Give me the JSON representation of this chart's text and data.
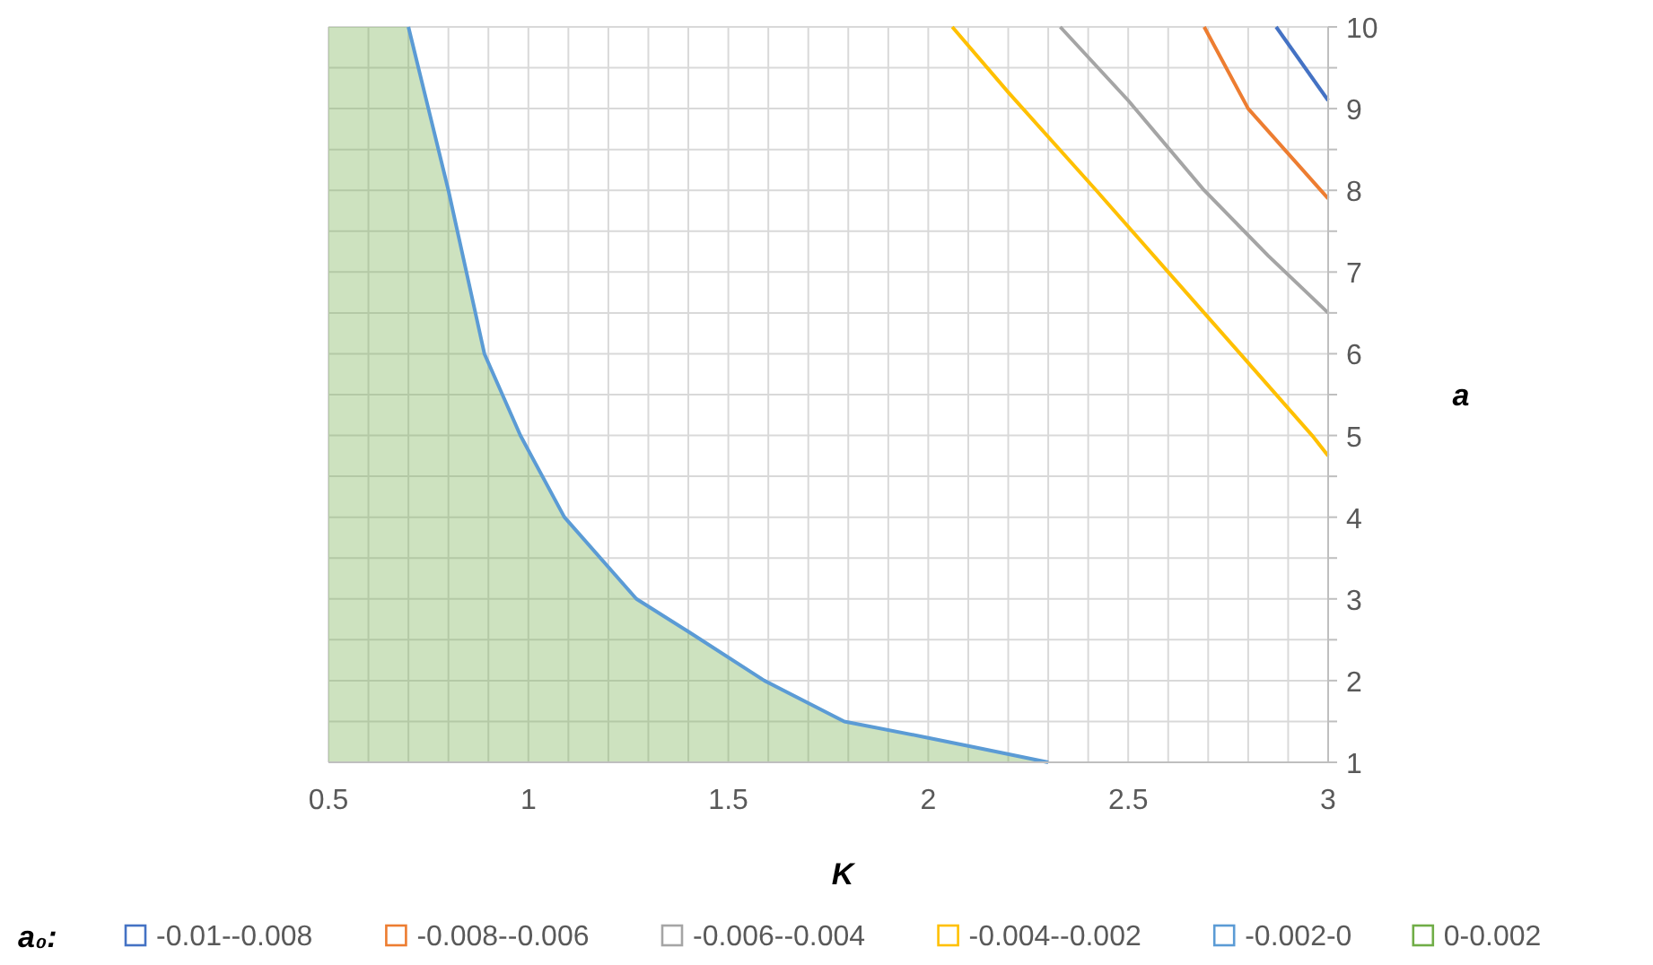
{
  "chart_data": {
    "type": "line",
    "xlabel": "K",
    "ylabel": "a",
    "legend_title": "a₀:",
    "legend": "bottom",
    "grid": true,
    "xlim": [
      0.5,
      3
    ],
    "ylim": [
      1,
      10
    ],
    "xticks": [
      0.5,
      {
        "value": 0.6,
        "label": null
      },
      {
        "value": 0.7,
        "label": null
      },
      {
        "value": 0.8,
        "label": null
      },
      {
        "value": 0.9,
        "label": null
      },
      1,
      {
        "value": 1.1,
        "label": null
      },
      {
        "value": 1.2,
        "label": null
      },
      {
        "value": 1.3,
        "label": null
      },
      {
        "value": 1.4,
        "label": null
      },
      1.5,
      {
        "value": 1.6,
        "label": null
      },
      {
        "value": 1.7,
        "label": null
      },
      {
        "value": 1.8,
        "label": null
      },
      {
        "value": 1.9,
        "label": null
      },
      2,
      {
        "value": 2.1,
        "label": null
      },
      {
        "value": 2.2,
        "label": null
      },
      {
        "value": 2.3,
        "label": null
      },
      {
        "value": 2.4,
        "label": null
      },
      2.5,
      {
        "value": 2.6,
        "label": null
      },
      {
        "value": 2.7,
        "label": null
      },
      {
        "value": 2.8,
        "label": null
      },
      {
        "value": 2.9,
        "label": null
      },
      3
    ],
    "yticks": [
      1,
      {
        "value": 1.5,
        "label": null
      },
      2,
      {
        "value": 2.5,
        "label": null
      },
      3,
      {
        "value": 3.5,
        "label": null
      },
      4,
      {
        "value": 4.5,
        "label": null
      },
      5,
      {
        "value": 5.5,
        "label": null
      },
      6,
      {
        "value": 6.5,
        "label": null
      },
      7,
      {
        "value": 7.5,
        "label": null
      },
      8,
      {
        "value": 8.5,
        "label": null
      },
      9,
      {
        "value": 9.5,
        "label": null
      },
      10
    ],
    "series": [
      {
        "name": "-0.01--0.008",
        "color": "#4472c4",
        "x": [
          2.87,
          3
        ],
        "values": [
          10,
          9.1
        ]
      },
      {
        "name": "-0.008--0.006",
        "color": "#ed7d31",
        "x": [
          2.69,
          2.8,
          3
        ],
        "values": [
          10,
          9,
          7.9
        ]
      },
      {
        "name": "-0.006--0.004",
        "color": "#a5a5a5",
        "x": [
          2.33,
          2.5,
          2.69,
          2.85,
          3
        ],
        "values": [
          10,
          9.1,
          8,
          7.2,
          6.5
        ]
      },
      {
        "name": "-0.004--0.002",
        "color": "#ffc000",
        "x": [
          2.06,
          2.2,
          2.42,
          2.6,
          2.78,
          2.96,
          3
        ],
        "values": [
          10,
          9.2,
          8,
          7,
          6,
          5,
          4.75
        ]
      },
      {
        "name": "-0.002-0",
        "color": "#5b9bd5",
        "x": [
          0.7,
          0.75,
          0.8,
          0.89,
          0.98,
          1.09,
          1.27,
          1.4,
          1.59,
          1.79,
          2,
          2.1,
          2.3
        ],
        "values": [
          10,
          9,
          8,
          6,
          5,
          4,
          3,
          2.6,
          2,
          1.5,
          1.3,
          1.2,
          1
        ]
      },
      {
        "name": "0-0.002",
        "type": "area",
        "color": "#70ad47",
        "x": [
          0.5,
          0.7,
          0.75,
          0.8,
          0.89,
          0.98,
          1.09,
          1.27,
          1.4,
          1.59,
          1.79,
          2,
          2.1,
          2.3
        ],
        "values": [
          10,
          10,
          9,
          8,
          6,
          5,
          4,
          3,
          2.6,
          2,
          1.5,
          1.3,
          1.2,
          1
        ]
      }
    ]
  }
}
